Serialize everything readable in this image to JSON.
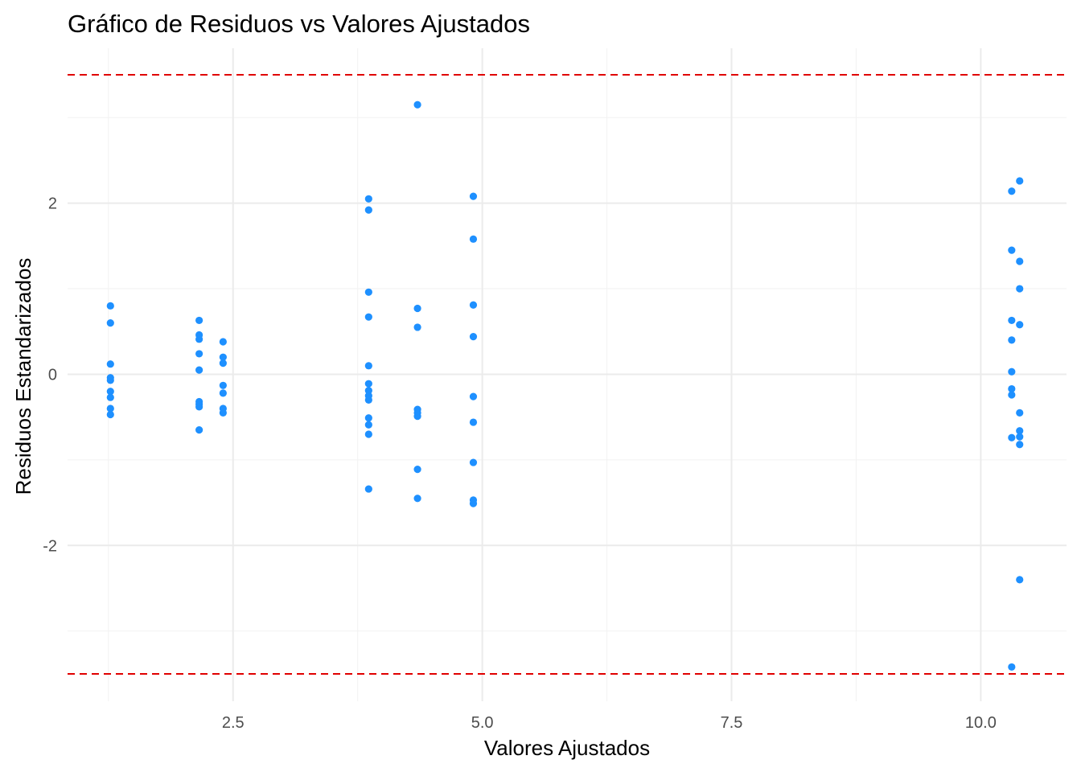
{
  "chart_data": {
    "type": "scatter",
    "title": "Gráfico de Residuos vs Valores Ajustados",
    "xlabel": "Valores Ajustados",
    "ylabel": "Residuos Estandarizados",
    "xlim": [
      0.84,
      10.86
    ],
    "ylim": [
      -3.82,
      3.81
    ],
    "x_ticks": [
      2.5,
      5.0,
      7.5,
      10.0
    ],
    "x_tick_labels": [
      "2.5",
      "5.0",
      "7.5",
      "10.0"
    ],
    "y_ticks": [
      -2,
      0,
      2
    ],
    "y_tick_labels": [
      "-2",
      "0",
      "2"
    ],
    "grid": true,
    "point_color": "#1E90FF",
    "reference_lines": [
      {
        "orientation": "horizontal",
        "y": 3.5,
        "color": "#E00000",
        "style": "dashed"
      },
      {
        "orientation": "horizontal",
        "y": -3.5,
        "color": "#E00000",
        "style": "dashed"
      }
    ],
    "points": [
      {
        "x": 1.27,
        "y": 0.8
      },
      {
        "x": 1.27,
        "y": 0.6
      },
      {
        "x": 1.27,
        "y": 0.12
      },
      {
        "x": 1.27,
        "y": -0.04
      },
      {
        "x": 1.27,
        "y": -0.07
      },
      {
        "x": 1.27,
        "y": -0.2
      },
      {
        "x": 1.27,
        "y": -0.27
      },
      {
        "x": 1.27,
        "y": -0.4
      },
      {
        "x": 1.27,
        "y": -0.47
      },
      {
        "x": 2.16,
        "y": 0.63
      },
      {
        "x": 2.16,
        "y": 0.46
      },
      {
        "x": 2.16,
        "y": 0.41
      },
      {
        "x": 2.16,
        "y": 0.24
      },
      {
        "x": 2.16,
        "y": 0.05
      },
      {
        "x": 2.16,
        "y": -0.32
      },
      {
        "x": 2.16,
        "y": -0.35
      },
      {
        "x": 2.16,
        "y": -0.38
      },
      {
        "x": 2.16,
        "y": -0.65
      },
      {
        "x": 2.4,
        "y": 0.38
      },
      {
        "x": 2.4,
        "y": 0.2
      },
      {
        "x": 2.4,
        "y": 0.13
      },
      {
        "x": 2.4,
        "y": -0.13
      },
      {
        "x": 2.4,
        "y": -0.22
      },
      {
        "x": 2.4,
        "y": -0.4
      },
      {
        "x": 2.4,
        "y": -0.45
      },
      {
        "x": 3.86,
        "y": 2.05
      },
      {
        "x": 3.86,
        "y": 1.92
      },
      {
        "x": 3.86,
        "y": 0.96
      },
      {
        "x": 3.86,
        "y": 0.67
      },
      {
        "x": 3.86,
        "y": 0.1
      },
      {
        "x": 3.86,
        "y": -0.11
      },
      {
        "x": 3.86,
        "y": -0.19
      },
      {
        "x": 3.86,
        "y": -0.25
      },
      {
        "x": 3.86,
        "y": -0.3
      },
      {
        "x": 3.86,
        "y": -0.51
      },
      {
        "x": 3.86,
        "y": -0.59
      },
      {
        "x": 3.86,
        "y": -0.7
      },
      {
        "x": 3.86,
        "y": -1.34
      },
      {
        "x": 4.35,
        "y": 3.15
      },
      {
        "x": 4.35,
        "y": 0.77
      },
      {
        "x": 4.35,
        "y": 0.55
      },
      {
        "x": 4.35,
        "y": -0.41
      },
      {
        "x": 4.35,
        "y": -0.45
      },
      {
        "x": 4.35,
        "y": -0.49
      },
      {
        "x": 4.35,
        "y": -1.11
      },
      {
        "x": 4.35,
        "y": -1.45
      },
      {
        "x": 4.91,
        "y": 2.08
      },
      {
        "x": 4.91,
        "y": 1.58
      },
      {
        "x": 4.91,
        "y": 0.81
      },
      {
        "x": 4.91,
        "y": 0.44
      },
      {
        "x": 4.91,
        "y": -0.26
      },
      {
        "x": 4.91,
        "y": -0.56
      },
      {
        "x": 4.91,
        "y": -1.03
      },
      {
        "x": 4.91,
        "y": -1.47
      },
      {
        "x": 4.91,
        "y": -1.51
      },
      {
        "x": 10.31,
        "y": 2.14
      },
      {
        "x": 10.31,
        "y": 1.45
      },
      {
        "x": 10.31,
        "y": 0.63
      },
      {
        "x": 10.31,
        "y": 0.4
      },
      {
        "x": 10.31,
        "y": 0.03
      },
      {
        "x": 10.31,
        "y": -0.17
      },
      {
        "x": 10.31,
        "y": -0.24
      },
      {
        "x": 10.31,
        "y": -0.74
      },
      {
        "x": 10.31,
        "y": -3.42
      },
      {
        "x": 10.39,
        "y": 2.26
      },
      {
        "x": 10.39,
        "y": 1.32
      },
      {
        "x": 10.39,
        "y": 1.0
      },
      {
        "x": 10.39,
        "y": 0.58
      },
      {
        "x": 10.39,
        "y": -0.45
      },
      {
        "x": 10.39,
        "y": -0.66
      },
      {
        "x": 10.39,
        "y": -0.73
      },
      {
        "x": 10.39,
        "y": -0.82
      },
      {
        "x": 10.39,
        "y": -2.4
      }
    ]
  }
}
